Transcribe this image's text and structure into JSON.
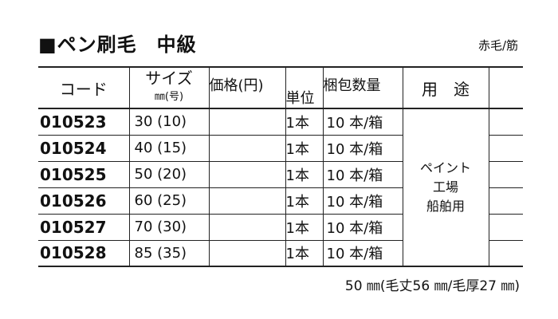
{
  "title": "■ペン刷毛　中級",
  "subtitle": "赤毛/筋",
  "headers": {
    "code": "コード",
    "size": "サイズ",
    "size_unit": "㎜(号)",
    "price": "価格(円)",
    "unit": "単位",
    "qty": "梱包数量",
    "usage": "用　途"
  },
  "rows": [
    {
      "code": "010523",
      "size": "30 (10)",
      "unit": "1本",
      "qty": "10 本/箱"
    },
    {
      "code": "010524",
      "size": "40 (15)",
      "unit": "1本",
      "qty": "10 本/箱"
    },
    {
      "code": "010525",
      "size": "50 (20)",
      "unit": "1本",
      "qty": "10 本/箱"
    },
    {
      "code": "010526",
      "size": "60 (25)",
      "unit": "1本",
      "qty": "10 本/箱"
    },
    {
      "code": "010527",
      "size": "70 (30)",
      "unit": "1本",
      "qty": "10 本/箱"
    },
    {
      "code": "010528",
      "size": "85 (35)",
      "unit": "1本",
      "qty": "10 本/箱"
    }
  ],
  "usage": [
    "ペイント",
    "工場",
    "船舶用"
  ],
  "footnote": "50 ㎜(毛丈56 ㎜/毛厚27 ㎜)"
}
